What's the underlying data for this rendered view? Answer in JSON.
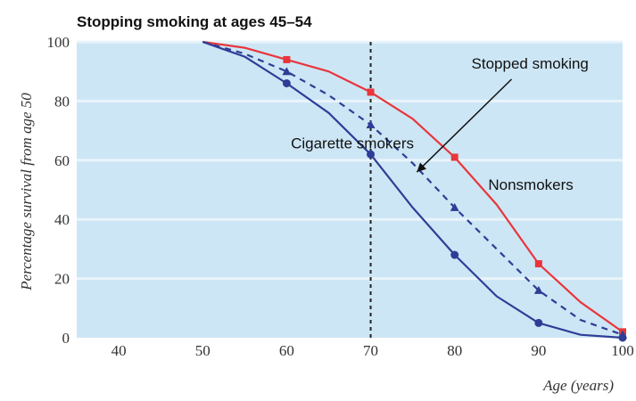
{
  "chart_data": {
    "type": "line",
    "title": "Stopping smoking at ages 45–54",
    "xlabel": "Age (years)",
    "ylabel": "Percentage survival from age 50",
    "xlim": [
      35,
      100
    ],
    "ylim": [
      0,
      100
    ],
    "x_ticks": [
      40,
      50,
      60,
      70,
      80,
      90,
      100
    ],
    "y_ticks": [
      0,
      20,
      40,
      60,
      80,
      100
    ],
    "grid": true,
    "vertical_reference_line": 70,
    "colors": {
      "background": "#cde6f5",
      "grid": "#e9f4fb",
      "nonsmokers": "#e8363b",
      "stopped": "#2e3e96",
      "smokers": "#2e3e96",
      "reference": "#222222"
    },
    "series": [
      {
        "name": "Nonsmokers",
        "marker": "square",
        "style": "solid",
        "x": [
          50,
          55,
          60,
          65,
          70,
          75,
          80,
          85,
          90,
          95,
          100
        ],
        "y": [
          100,
          98,
          94,
          90,
          83,
          74,
          61,
          45,
          25,
          12,
          2
        ]
      },
      {
        "name": "Stopped smoking",
        "marker": "triangle",
        "style": "dashed",
        "x": [
          50,
          55,
          60,
          65,
          70,
          75,
          80,
          85,
          90,
          95,
          100
        ],
        "y": [
          100,
          96,
          90,
          82,
          72,
          59,
          44,
          30,
          16,
          6,
          1
        ]
      },
      {
        "name": "Cigarette smokers",
        "marker": "circle",
        "style": "solid",
        "x": [
          50,
          55,
          60,
          65,
          70,
          75,
          80,
          85,
          90,
          95,
          100
        ],
        "y": [
          100,
          95,
          86,
          76,
          62,
          44,
          28,
          14,
          5,
          1,
          0
        ]
      }
    ],
    "marker_x": [
      60,
      70,
      80,
      90,
      100
    ],
    "annotations": [
      {
        "text": "Stopped smoking",
        "x": 82,
        "y": 91,
        "arrow_to": [
          75.5,
          56
        ]
      },
      {
        "text": "Cigarette smokers",
        "x": 60.5,
        "y": 64
      },
      {
        "text": "Nonsmokers",
        "x": 84,
        "y": 50
      }
    ]
  }
}
